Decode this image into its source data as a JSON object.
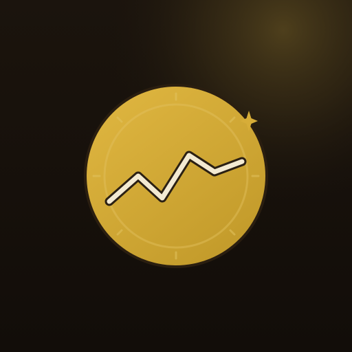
{
  "app": {
    "kind": "app-icon"
  },
  "icon": {
    "subject": "coin-with-rising-trend-line",
    "decorations": [
      "sparkle-icon",
      "tick-marks",
      "inner-ring"
    ]
  },
  "colors": {
    "background_dark": "#120d09",
    "background_mid": "#1b140d",
    "glow": "#4e3f1c",
    "coin_light": "#dcb33e",
    "coin_dark": "#c29a2a",
    "coin_rim": "#2a1e10",
    "ring": "#e2c260",
    "line_fill": "#f3ead2",
    "line_outline": "#2b2013",
    "sparkle": "#d7ad38"
  }
}
